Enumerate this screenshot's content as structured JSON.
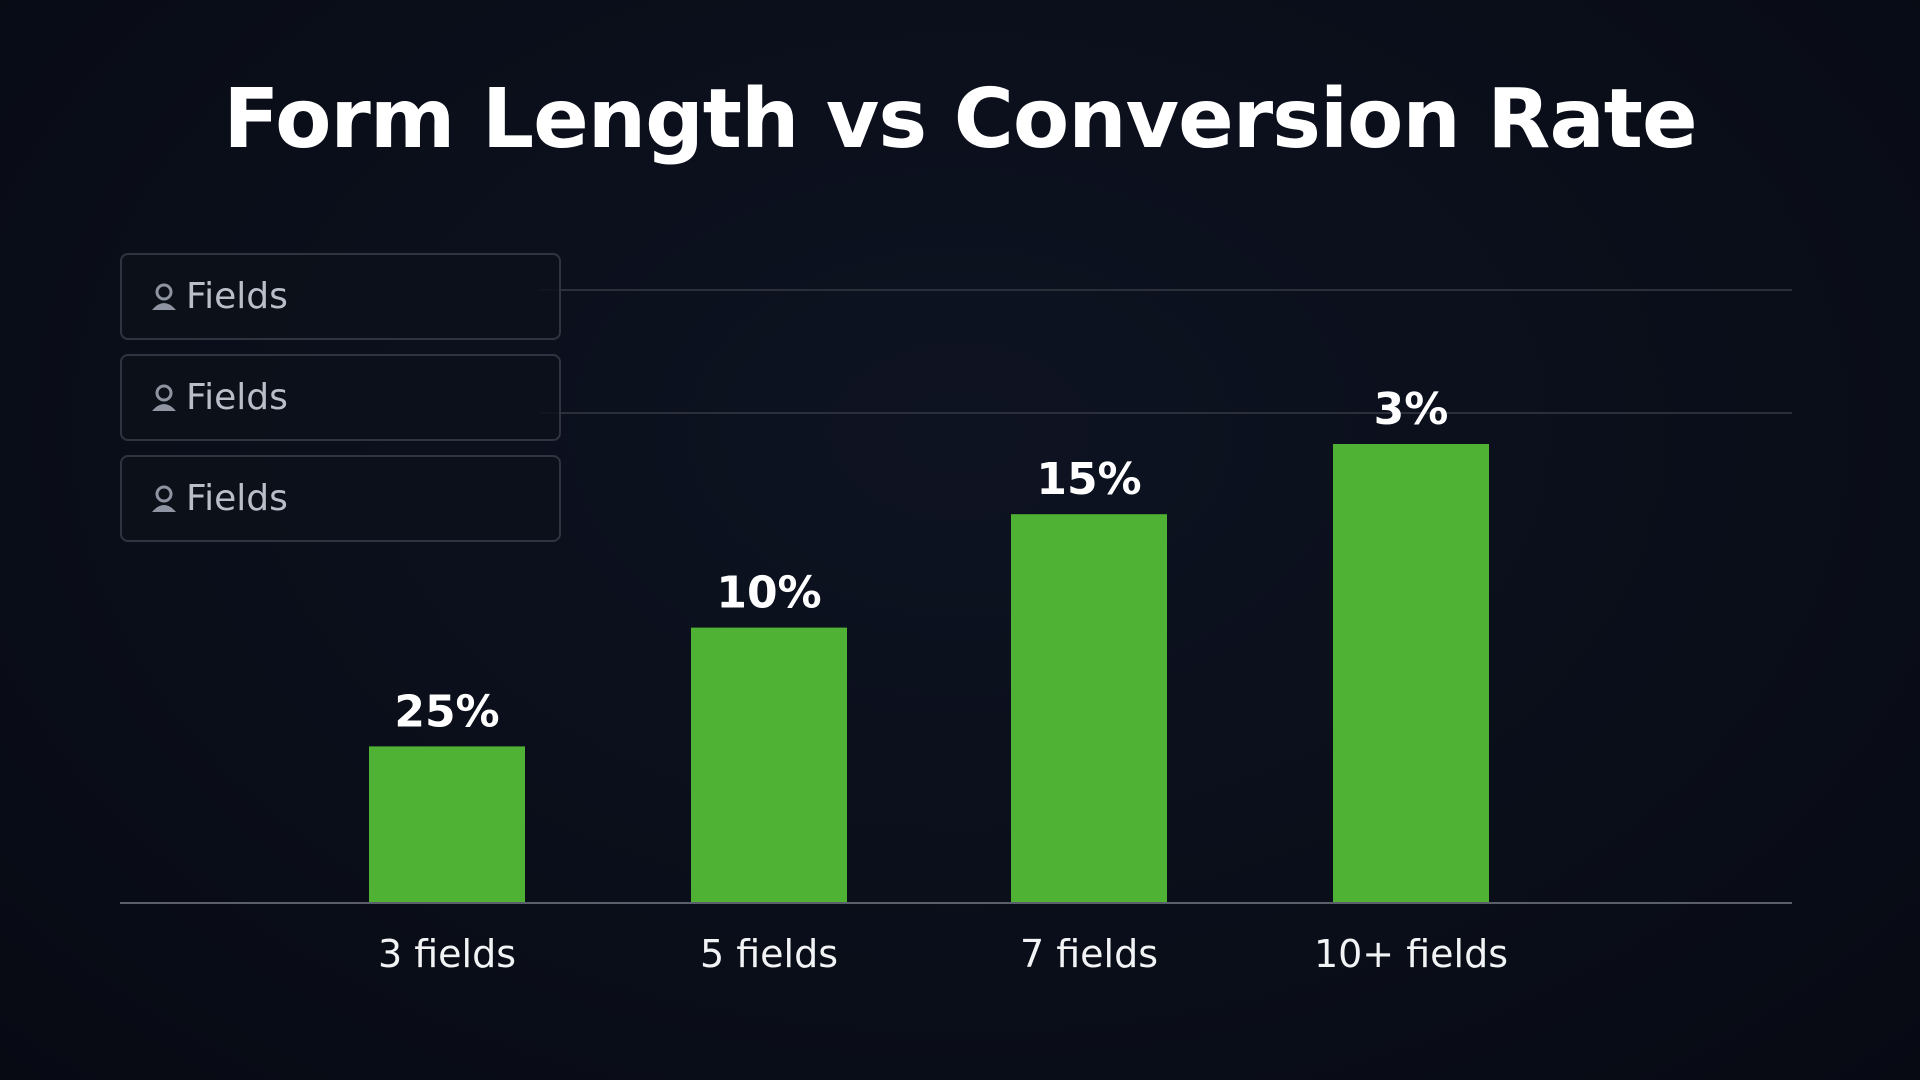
{
  "chart_data": {
    "type": "bar",
    "title": "Form Length vs Conversion Rate",
    "categories": [
      "3 fields",
      "5 fields",
      "7 fields",
      "10+ fields"
    ],
    "values": [
      25,
      10,
      15,
      3
    ],
    "value_labels": [
      "25%",
      "10%",
      "15%",
      "3%"
    ],
    "bar_color": "#4fb234",
    "xlabel": "",
    "ylabel": "",
    "grid": true
  },
  "legend_boxes": [
    {
      "label": "Fields",
      "icon": "user-icon"
    },
    {
      "label": "Fields",
      "icon": "user-icon"
    },
    {
      "label": "Fields",
      "icon": "user-icon"
    }
  ],
  "colors": {
    "background": "#0a0e19",
    "bar": "#4fb234",
    "axis": "#5a5f6b",
    "grid": "#2a2f3a"
  }
}
